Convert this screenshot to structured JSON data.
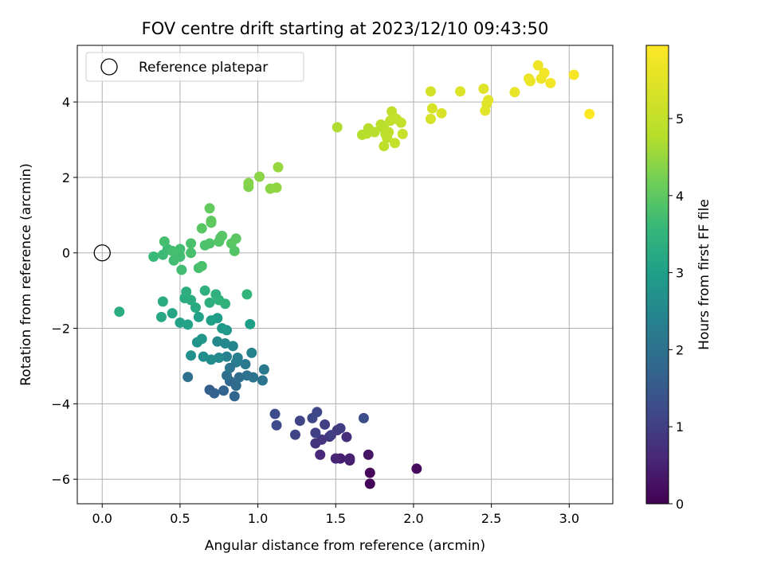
{
  "chart_data": {
    "type": "scatter",
    "title": "FOV centre drift starting at 2023/12/10 09:43:50",
    "xlabel": "Angular distance from reference (arcmin)",
    "ylabel": "Rotation from reference (arcmin)",
    "xlim": [
      -0.16,
      3.28
    ],
    "ylim": [
      -6.65,
      5.5
    ],
    "xticks": [
      0.0,
      0.5,
      1.0,
      1.5,
      2.0,
      2.5,
      3.0
    ],
    "xtick_labels": [
      "0.0",
      "0.5",
      "1.0",
      "1.5",
      "2.0",
      "2.5",
      "3.0"
    ],
    "yticks": [
      -6,
      -4,
      -2,
      0,
      2,
      4
    ],
    "ytick_labels": [
      "−6",
      "−4",
      "−2",
      "0",
      "2",
      "4"
    ],
    "grid": true,
    "legend": {
      "position": "top-left",
      "entries": [
        "Reference platepar"
      ]
    },
    "reference_point": {
      "x": 0.0,
      "y": 0.0
    },
    "colorbar": {
      "label": "Hours from first FF file",
      "range": [
        0,
        5.95
      ],
      "ticks": [
        0,
        1,
        2,
        3,
        4,
        5
      ],
      "tick_labels": [
        "0",
        "1",
        "2",
        "3",
        "4",
        "5"
      ],
      "colormap": "viridis"
    },
    "points": [
      {
        "x": 1.72,
        "y": -6.12,
        "c": 0.05
      },
      {
        "x": 1.72,
        "y": -5.83,
        "c": 0.1
      },
      {
        "x": 2.02,
        "y": -5.72,
        "c": 0.15
      },
      {
        "x": 1.71,
        "y": -5.35,
        "c": 0.3
      },
      {
        "x": 1.59,
        "y": -5.5,
        "c": 0.4
      },
      {
        "x": 1.53,
        "y": -5.45,
        "c": 0.45
      },
      {
        "x": 1.59,
        "y": -5.45,
        "c": 0.5
      },
      {
        "x": 1.5,
        "y": -5.45,
        "c": 0.55
      },
      {
        "x": 1.4,
        "y": -5.35,
        "c": 0.6
      },
      {
        "x": 1.57,
        "y": -4.88,
        "c": 0.7
      },
      {
        "x": 1.46,
        "y": -4.87,
        "c": 0.75
      },
      {
        "x": 1.37,
        "y": -5.05,
        "c": 0.8
      },
      {
        "x": 1.41,
        "y": -4.95,
        "c": 0.85
      },
      {
        "x": 1.51,
        "y": -4.7,
        "c": 0.9
      },
      {
        "x": 1.53,
        "y": -4.65,
        "c": 0.95
      },
      {
        "x": 1.43,
        "y": -4.55,
        "c": 1.0
      },
      {
        "x": 1.37,
        "y": -4.77,
        "c": 1.05
      },
      {
        "x": 1.24,
        "y": -4.82,
        "c": 1.1
      },
      {
        "x": 1.27,
        "y": -4.45,
        "c": 1.12
      },
      {
        "x": 1.35,
        "y": -4.38,
        "c": 1.15
      },
      {
        "x": 1.38,
        "y": -4.22,
        "c": 1.18
      },
      {
        "x": 1.12,
        "y": -4.57,
        "c": 1.2
      },
      {
        "x": 1.11,
        "y": -4.27,
        "c": 1.25
      },
      {
        "x": 1.68,
        "y": -4.38,
        "c": 1.3
      },
      {
        "x": 1.47,
        "y": -4.83,
        "c": 1.0
      },
      {
        "x": 0.69,
        "y": -3.63,
        "c": 1.6
      },
      {
        "x": 0.72,
        "y": -3.72,
        "c": 1.65
      },
      {
        "x": 0.78,
        "y": -3.65,
        "c": 1.7
      },
      {
        "x": 0.85,
        "y": -3.8,
        "c": 1.75
      },
      {
        "x": 0.82,
        "y": -3.4,
        "c": 1.8
      },
      {
        "x": 0.86,
        "y": -3.52,
        "c": 1.85
      },
      {
        "x": 0.88,
        "y": -3.3,
        "c": 1.9
      },
      {
        "x": 0.8,
        "y": -3.25,
        "c": 1.95
      },
      {
        "x": 0.93,
        "y": -3.25,
        "c": 2.0
      },
      {
        "x": 0.97,
        "y": -3.3,
        "c": 2.05
      },
      {
        "x": 1.03,
        "y": -3.38,
        "c": 2.1
      },
      {
        "x": 1.04,
        "y": -3.09,
        "c": 2.15
      },
      {
        "x": 0.92,
        "y": -2.95,
        "c": 2.2
      },
      {
        "x": 0.86,
        "y": -2.9,
        "c": 2.25
      },
      {
        "x": 0.87,
        "y": -2.78,
        "c": 2.3
      },
      {
        "x": 0.8,
        "y": -2.75,
        "c": 2.35
      },
      {
        "x": 0.82,
        "y": -3.05,
        "c": 2.1
      },
      {
        "x": 0.96,
        "y": -2.65,
        "c": 2.4
      },
      {
        "x": 0.84,
        "y": -2.47,
        "c": 2.45
      },
      {
        "x": 0.79,
        "y": -2.4,
        "c": 2.5
      },
      {
        "x": 0.75,
        "y": -2.78,
        "c": 2.55
      },
      {
        "x": 0.7,
        "y": -2.83,
        "c": 2.6
      },
      {
        "x": 0.65,
        "y": -2.75,
        "c": 2.65
      },
      {
        "x": 0.57,
        "y": -2.72,
        "c": 2.7
      },
      {
        "x": 0.55,
        "y": -3.29,
        "c": 2.0
      },
      {
        "x": 0.74,
        "y": -2.35,
        "c": 2.5
      },
      {
        "x": 0.61,
        "y": -2.37,
        "c": 2.75
      },
      {
        "x": 0.64,
        "y": -2.28,
        "c": 2.8
      },
      {
        "x": 0.8,
        "y": -2.05,
        "c": 2.85
      },
      {
        "x": 0.77,
        "y": -2.0,
        "c": 2.9
      },
      {
        "x": 0.74,
        "y": -1.73,
        "c": 2.95
      },
      {
        "x": 0.7,
        "y": -1.79,
        "c": 3.0
      },
      {
        "x": 0.62,
        "y": -1.7,
        "c": 3.05
      },
      {
        "x": 0.55,
        "y": -1.9,
        "c": 3.1
      },
      {
        "x": 0.5,
        "y": -1.85,
        "c": 3.1
      },
      {
        "x": 0.45,
        "y": -1.6,
        "c": 3.15
      },
      {
        "x": 0.38,
        "y": -1.7,
        "c": 3.2
      },
      {
        "x": 0.95,
        "y": -1.89,
        "c": 3.0
      },
      {
        "x": 0.6,
        "y": -1.45,
        "c": 3.25
      },
      {
        "x": 0.57,
        "y": -1.25,
        "c": 3.3
      },
      {
        "x": 0.53,
        "y": -1.2,
        "c": 3.3
      },
      {
        "x": 0.54,
        "y": -1.03,
        "c": 3.35
      },
      {
        "x": 0.39,
        "y": -1.29,
        "c": 3.3
      },
      {
        "x": 0.69,
        "y": -1.32,
        "c": 3.35
      },
      {
        "x": 0.66,
        "y": -1.0,
        "c": 3.4
      },
      {
        "x": 0.73,
        "y": -1.1,
        "c": 3.4
      },
      {
        "x": 0.75,
        "y": -1.25,
        "c": 3.45
      },
      {
        "x": 0.79,
        "y": -1.35,
        "c": 3.45
      },
      {
        "x": 0.93,
        "y": -1.1,
        "c": 3.5
      },
      {
        "x": 0.11,
        "y": -1.56,
        "c": 3.3
      },
      {
        "x": 0.33,
        "y": -0.1,
        "c": 3.6
      },
      {
        "x": 0.39,
        "y": -0.05,
        "c": 3.65
      },
      {
        "x": 0.42,
        "y": 0.1,
        "c": 3.65
      },
      {
        "x": 0.46,
        "y": -0.2,
        "c": 3.7
      },
      {
        "x": 0.5,
        "y": -0.1,
        "c": 3.7
      },
      {
        "x": 0.5,
        "y": 0.1,
        "c": 3.72
      },
      {
        "x": 0.51,
        "y": -0.45,
        "c": 3.7
      },
      {
        "x": 0.4,
        "y": 0.3,
        "c": 3.75
      },
      {
        "x": 0.45,
        "y": 0.05,
        "c": 3.75
      },
      {
        "x": 0.57,
        "y": 0.0,
        "c": 3.78
      },
      {
        "x": 0.57,
        "y": 0.25,
        "c": 3.8
      },
      {
        "x": 0.62,
        "y": -0.4,
        "c": 3.75
      },
      {
        "x": 0.64,
        "y": -0.35,
        "c": 3.8
      },
      {
        "x": 0.66,
        "y": 0.2,
        "c": 3.82
      },
      {
        "x": 0.69,
        "y": 0.25,
        "c": 3.85
      },
      {
        "x": 0.75,
        "y": 0.3,
        "c": 3.88
      },
      {
        "x": 0.76,
        "y": 0.4,
        "c": 3.9
      },
      {
        "x": 0.77,
        "y": 0.45,
        "c": 3.92
      },
      {
        "x": 0.83,
        "y": 0.25,
        "c": 3.95
      },
      {
        "x": 0.85,
        "y": 0.05,
        "c": 3.9
      },
      {
        "x": 0.86,
        "y": 0.38,
        "c": 3.98
      },
      {
        "x": 0.64,
        "y": 0.65,
        "c": 3.95
      },
      {
        "x": 0.7,
        "y": 0.8,
        "c": 4.0
      },
      {
        "x": 0.7,
        "y": 0.85,
        "c": 4.02
      },
      {
        "x": 0.69,
        "y": 1.18,
        "c": 4.05
      },
      {
        "x": 0.94,
        "y": 1.75,
        "c": 4.3
      },
      {
        "x": 0.94,
        "y": 1.85,
        "c": 4.35
      },
      {
        "x": 1.01,
        "y": 2.02,
        "c": 4.4
      },
      {
        "x": 1.08,
        "y": 1.7,
        "c": 4.4
      },
      {
        "x": 1.12,
        "y": 1.73,
        "c": 4.45
      },
      {
        "x": 1.13,
        "y": 2.27,
        "c": 4.5
      },
      {
        "x": 1.51,
        "y": 3.33,
        "c": 4.7
      },
      {
        "x": 1.67,
        "y": 3.13,
        "c": 4.75
      },
      {
        "x": 1.7,
        "y": 3.16,
        "c": 4.8
      },
      {
        "x": 1.71,
        "y": 3.3,
        "c": 4.8
      },
      {
        "x": 1.75,
        "y": 3.2,
        "c": 4.82
      },
      {
        "x": 1.79,
        "y": 3.4,
        "c": 4.85
      },
      {
        "x": 1.81,
        "y": 3.3,
        "c": 4.85
      },
      {
        "x": 1.82,
        "y": 3.15,
        "c": 4.88
      },
      {
        "x": 1.83,
        "y": 3.05,
        "c": 4.9
      },
      {
        "x": 1.81,
        "y": 2.83,
        "c": 4.9
      },
      {
        "x": 1.84,
        "y": 3.2,
        "c": 4.92
      },
      {
        "x": 1.85,
        "y": 3.5,
        "c": 4.95
      },
      {
        "x": 1.86,
        "y": 3.75,
        "c": 4.95
      },
      {
        "x": 1.87,
        "y": 3.6,
        "c": 4.98
      },
      {
        "x": 1.89,
        "y": 3.55,
        "c": 5.0
      },
      {
        "x": 1.88,
        "y": 2.91,
        "c": 5.0
      },
      {
        "x": 1.92,
        "y": 3.45,
        "c": 5.02
      },
      {
        "x": 1.93,
        "y": 3.15,
        "c": 5.05
      },
      {
        "x": 2.11,
        "y": 4.28,
        "c": 5.25
      },
      {
        "x": 2.12,
        "y": 3.83,
        "c": 5.3
      },
      {
        "x": 2.11,
        "y": 3.55,
        "c": 5.3
      },
      {
        "x": 2.18,
        "y": 3.7,
        "c": 5.32
      },
      {
        "x": 2.3,
        "y": 4.28,
        "c": 5.4
      },
      {
        "x": 2.45,
        "y": 4.35,
        "c": 5.45
      },
      {
        "x": 2.47,
        "y": 3.95,
        "c": 5.48
      },
      {
        "x": 2.46,
        "y": 3.77,
        "c": 5.5
      },
      {
        "x": 2.48,
        "y": 4.05,
        "c": 5.5
      },
      {
        "x": 2.65,
        "y": 4.26,
        "c": 5.6
      },
      {
        "x": 2.74,
        "y": 4.62,
        "c": 5.65
      },
      {
        "x": 2.75,
        "y": 4.55,
        "c": 5.67
      },
      {
        "x": 2.8,
        "y": 4.97,
        "c": 5.7
      },
      {
        "x": 2.82,
        "y": 4.62,
        "c": 5.72
      },
      {
        "x": 2.84,
        "y": 4.77,
        "c": 5.75
      },
      {
        "x": 2.88,
        "y": 4.5,
        "c": 5.78
      },
      {
        "x": 3.03,
        "y": 4.72,
        "c": 5.85
      },
      {
        "x": 3.13,
        "y": 3.68,
        "c": 5.93
      }
    ]
  }
}
